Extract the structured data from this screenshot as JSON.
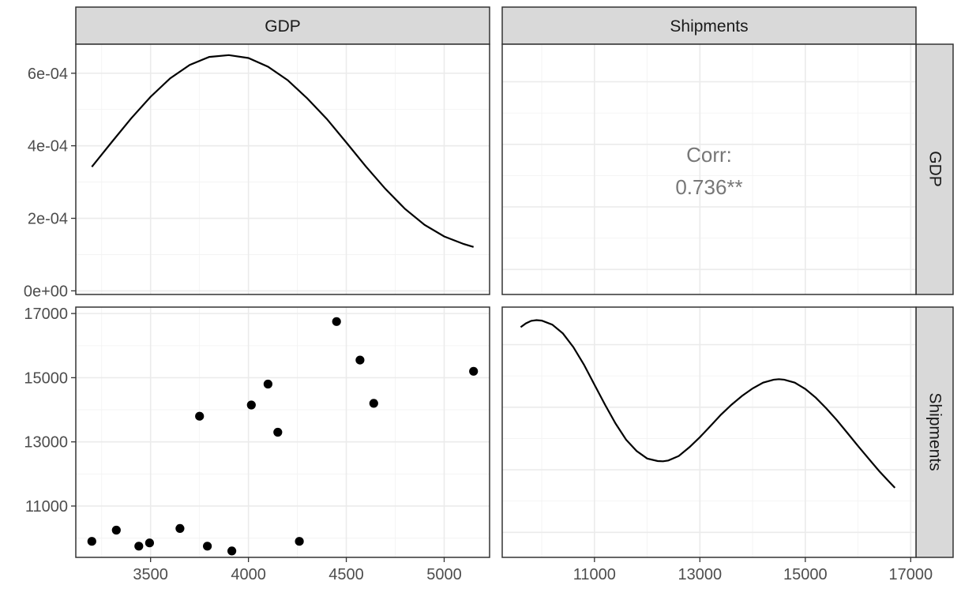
{
  "variables": [
    "GDP",
    "Shipments"
  ],
  "strips": {
    "top": [
      "GDP",
      "Shipments"
    ],
    "right": [
      "GDP",
      "Shipments"
    ]
  },
  "correlation": {
    "label": "Corr:",
    "value": "0.736**"
  },
  "chart_data": [
    {
      "type": "line",
      "panel": "GDP density",
      "x_range": [
        3200,
        5150
      ],
      "y_range": [
        0,
        0.00065
      ],
      "ylim": [
        -1e-05,
        0.00068
      ],
      "xlim": [
        3118,
        5232
      ],
      "y_ticks": [
        0,
        0.0002,
        0.0004,
        0.0006
      ],
      "y_tick_labels": [
        "0e+00",
        "2e-04",
        "4e-04",
        "6e-04"
      ],
      "x": [
        3200,
        3300,
        3400,
        3500,
        3600,
        3700,
        3800,
        3900,
        4000,
        4100,
        4200,
        4300,
        4400,
        4500,
        4600,
        4700,
        4800,
        4900,
        5000,
        5100,
        5150
      ],
      "y": [
        0.000342,
        0.000409,
        0.000475,
        0.000535,
        0.000586,
        0.000623,
        0.000645,
        0.00065,
        0.000642,
        0.000618,
        0.000581,
        0.000531,
        0.000474,
        0.000409,
        0.000343,
        0.000281,
        0.000226,
        0.000182,
        0.00015,
        0.000129,
        0.000121
      ]
    },
    {
      "type": "scatter",
      "panel": "Shipments vs GDP",
      "xlim": [
        3118,
        5232
      ],
      "ylim": [
        9400,
        17200
      ],
      "x_ticks": [
        3500,
        4000,
        4500,
        5000
      ],
      "y_ticks": [
        11000,
        13000,
        15000,
        17000
      ],
      "points": [
        {
          "x": 3200,
          "y": 9900
        },
        {
          "x": 3325,
          "y": 10250
        },
        {
          "x": 3440,
          "y": 9750
        },
        {
          "x": 3495,
          "y": 9850
        },
        {
          "x": 3650,
          "y": 10300
        },
        {
          "x": 3750,
          "y": 13800
        },
        {
          "x": 3790,
          "y": 9750
        },
        {
          "x": 3915,
          "y": 9600
        },
        {
          "x": 4015,
          "y": 14150
        },
        {
          "x": 4100,
          "y": 14800
        },
        {
          "x": 4150,
          "y": 13300
        },
        {
          "x": 4260,
          "y": 9900
        },
        {
          "x": 4450,
          "y": 16750
        },
        {
          "x": 4570,
          "y": 15550
        },
        {
          "x": 4640,
          "y": 14200
        },
        {
          "x": 5150,
          "y": 15200
        }
      ]
    },
    {
      "type": "line",
      "panel": "Shipments density",
      "xlim": [
        9250,
        17100
      ],
      "x_ticks": [
        11000,
        13000,
        15000,
        17000
      ],
      "ylim": [
        0,
        1
      ],
      "x": [
        9600,
        9700,
        9800,
        9900,
        10000,
        10200,
        10400,
        10600,
        10800,
        11000,
        11200,
        11400,
        11600,
        11800,
        12000,
        12200,
        12300,
        12400,
        12600,
        12800,
        13000,
        13200,
        13400,
        13600,
        13800,
        14000,
        14200,
        14400,
        14500,
        14600,
        14800,
        15000,
        15200,
        15400,
        15600,
        15800,
        16000,
        16200,
        16400,
        16600,
        16700
      ],
      "y": [
        0.92,
        0.935,
        0.945,
        0.948,
        0.946,
        0.93,
        0.895,
        0.84,
        0.77,
        0.69,
        0.61,
        0.535,
        0.47,
        0.425,
        0.395,
        0.385,
        0.384,
        0.387,
        0.405,
        0.44,
        0.48,
        0.525,
        0.57,
        0.61,
        0.645,
        0.675,
        0.698,
        0.71,
        0.712,
        0.71,
        0.698,
        0.673,
        0.638,
        0.595,
        0.548,
        0.497,
        0.445,
        0.395,
        0.345,
        0.3,
        0.278
      ]
    }
  ]
}
